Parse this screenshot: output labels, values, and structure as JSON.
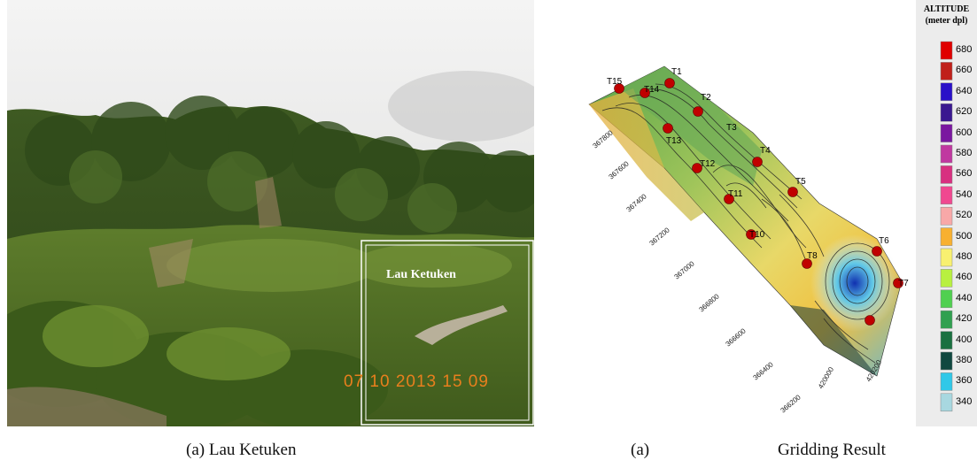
{
  "photo": {
    "overlay_label": "Lau Ketuken",
    "timestamp": "07 10 2013 15 09",
    "caption": "(a) Lau Ketuken"
  },
  "map": {
    "caption_number": "(a)",
    "caption_text": "Gridding Result",
    "points": [
      "T1",
      "T2",
      "T3",
      "T4",
      "T5",
      "T6",
      "T7",
      "T8",
      "T10",
      "T11",
      "T12",
      "T13",
      "T14",
      "T15"
    ],
    "y_ticks": [
      "367800",
      "367600",
      "367400",
      "367200",
      "367000",
      "366800",
      "366600",
      "366400",
      "366200"
    ],
    "x_ticks": [
      "420000",
      "420200"
    ]
  },
  "legend": {
    "title_line1": "ALTITUDE",
    "title_line2": "(meter dpl)",
    "levels": [
      {
        "value": "680",
        "color": "#e00000"
      },
      {
        "value": "660",
        "color": "#c0201a"
      },
      {
        "value": "640",
        "color": "#2a10c8"
      },
      {
        "value": "620",
        "color": "#3a1890"
      },
      {
        "value": "600",
        "color": "#7a18a0"
      },
      {
        "value": "580",
        "color": "#c038a0"
      },
      {
        "value": "560",
        "color": "#d83080"
      },
      {
        "value": "540",
        "color": "#f04890"
      },
      {
        "value": "520",
        "color": "#f8a8a8"
      },
      {
        "value": "500",
        "color": "#f8b030"
      },
      {
        "value": "480",
        "color": "#f8f070"
      },
      {
        "value": "460",
        "color": "#b8f040"
      },
      {
        "value": "440",
        "color": "#50d050"
      },
      {
        "value": "420",
        "color": "#30a050"
      },
      {
        "value": "400",
        "color": "#1a7040"
      },
      {
        "value": "380",
        "color": "#104840"
      },
      {
        "value": "360",
        "color": "#30c8e8"
      },
      {
        "value": "340",
        "color": "#a8d8e0"
      }
    ]
  }
}
